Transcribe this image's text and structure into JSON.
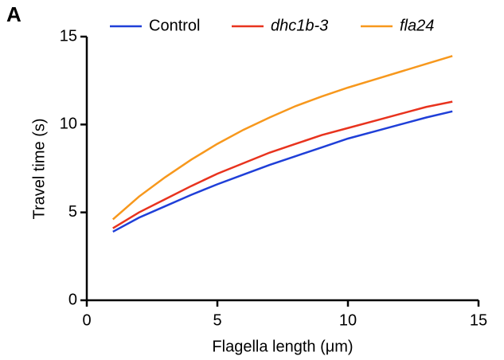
{
  "chart_data": {
    "type": "line",
    "panel_label": "A",
    "x_label": "Flagella length (μm)",
    "y_label": "Travel time (s)",
    "x": [
      1,
      2,
      3,
      4,
      5,
      6,
      7,
      8,
      9,
      10,
      11,
      12,
      13,
      14
    ],
    "series": [
      {
        "name": "Control",
        "color": "#1f3fd8",
        "font_style": "normal",
        "values": [
          3.9,
          4.7,
          5.35,
          6.0,
          6.6,
          7.15,
          7.7,
          8.2,
          8.7,
          9.2,
          9.6,
          10.0,
          10.4,
          10.75
        ]
      },
      {
        "name": "dhc1b-3",
        "color": "#e8331e",
        "font_style": "italic",
        "values": [
          4.1,
          5.0,
          5.75,
          6.5,
          7.2,
          7.8,
          8.4,
          8.9,
          9.4,
          9.8,
          10.2,
          10.6,
          11.0,
          11.3
        ]
      },
      {
        "name": "fla24",
        "color": "#f7981d",
        "font_style": "italic",
        "values": [
          4.6,
          5.9,
          7.0,
          8.0,
          8.9,
          9.7,
          10.4,
          11.05,
          11.6,
          12.1,
          12.55,
          13.0,
          13.45,
          13.9
        ]
      }
    ],
    "xlim": [
      0,
      15
    ],
    "xticks": [
      0,
      5,
      10,
      15
    ],
    "ylim": [
      0,
      15
    ],
    "yticks": [
      0,
      5,
      10,
      15
    ],
    "grid": false,
    "legend": "top"
  }
}
